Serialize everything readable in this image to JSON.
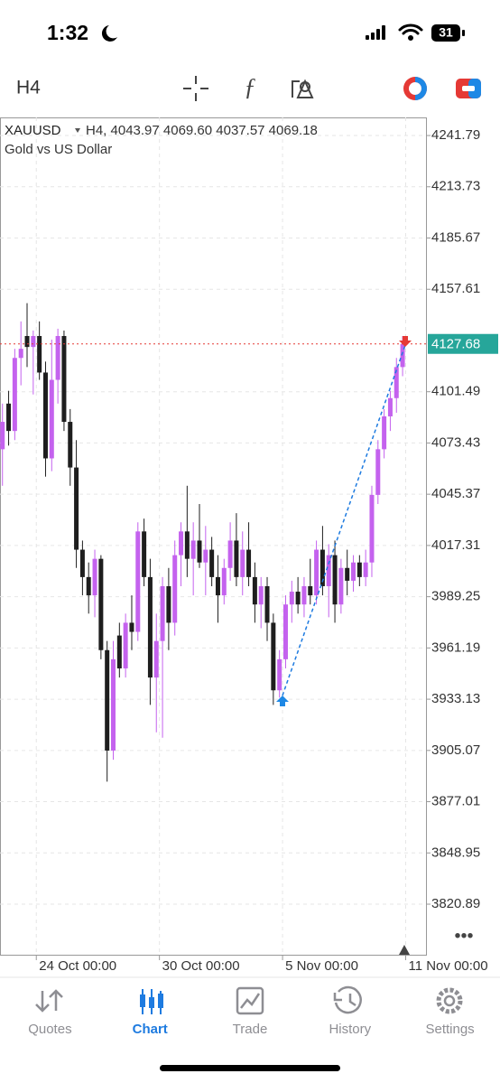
{
  "status_bar": {
    "time": "1:32",
    "battery": "31"
  },
  "toolbar": {
    "timeframe": "H4"
  },
  "chart_data": {
    "type": "candlestick",
    "symbol": "XAUUSD",
    "info": "H4, 4043.97 4069.60 4037.57 4069.18",
    "subtitle": "Gold vs US Dollar",
    "up_color": "#c462ee",
    "down_color": "#1e1e1e",
    "open": [
      4070,
      4095,
      4080,
      4120,
      4132,
      4126,
      4132,
      4112,
      4065,
      4108,
      4132,
      4085,
      4060,
      4015,
      4000,
      3990,
      4010,
      3960,
      3905,
      3968,
      3950,
      3975,
      3970,
      4025,
      4000,
      3945,
      3965,
      3995,
      3975,
      4012,
      4025,
      4010,
      4020,
      4008,
      4015,
      4000,
      3990,
      4005,
      4020,
      4000,
      4015,
      4000,
      3985,
      3995,
      3975,
      3938,
      3955,
      3985,
      3992,
      3985,
      3995,
      3990,
      4015,
      3995,
      4012,
      3985,
      4005,
      3998,
      4008,
      4000,
      4008,
      4045,
      4070,
      4088,
      4098,
      4115
    ],
    "high": [
      4095,
      4102,
      4125,
      4140,
      4150,
      4135,
      4140,
      4118,
      4130,
      4136,
      4135,
      4092,
      4075,
      4020,
      4008,
      4015,
      4012,
      3965,
      3965,
      3975,
      3980,
      3990,
      4030,
      4032,
      4010,
      3980,
      4000,
      4005,
      4020,
      4030,
      4050,
      4030,
      4040,
      4028,
      4022,
      4012,
      4010,
      4030,
      4035,
      4025,
      4030,
      4008,
      4000,
      4000,
      3980,
      3960,
      3990,
      3998,
      4000,
      4000,
      4010,
      4020,
      4028,
      4018,
      4020,
      4010,
      4015,
      4012,
      4012,
      4015,
      4050,
      4075,
      4092,
      4102,
      4120,
      4132
    ],
    "low": [
      4050,
      4072,
      4075,
      4105,
      4115,
      4100,
      4108,
      4055,
      4058,
      4095,
      4080,
      4050,
      4005,
      3990,
      3980,
      3978,
      3955,
      3888,
      3900,
      3945,
      3945,
      3960,
      3965,
      3995,
      3930,
      3915,
      3912,
      3960,
      3968,
      3995,
      4000,
      3990,
      4005,
      3990,
      3995,
      3975,
      3985,
      3998,
      3995,
      3990,
      3995,
      3975,
      3972,
      3965,
      3930,
      3934,
      3950,
      3975,
      3980,
      3978,
      3985,
      3985,
      3990,
      3978,
      3975,
      3980,
      3990,
      3992,
      3995,
      3995,
      4000,
      4040,
      4065,
      4080,
      4090,
      4110
    ],
    "close": [
      4085,
      4080,
      4120,
      4125,
      4126,
      4132,
      4112,
      4065,
      4108,
      4132,
      4085,
      4060,
      4015,
      4000,
      3990,
      4010,
      3960,
      3905,
      3955,
      3950,
      3975,
      3970,
      4025,
      4000,
      3945,
      3965,
      3995,
      3975,
      4012,
      4025,
      4010,
      4020,
      4008,
      4015,
      4000,
      3990,
      4005,
      4020,
      4000,
      4015,
      4000,
      3985,
      3995,
      3975,
      3938,
      3955,
      3985,
      3992,
      3985,
      3995,
      3990,
      4015,
      3995,
      4012,
      3985,
      4005,
      3998,
      4008,
      4000,
      4008,
      4045,
      4070,
      4088,
      4098,
      4115,
      4127.68
    ],
    "current_price": 4127.68,
    "ylim": [
      3793.2,
      4251.7
    ],
    "yticks": [
      4241.79,
      4213.73,
      4185.67,
      4157.61,
      4101.49,
      4073.43,
      4045.37,
      4017.31,
      3989.25,
      3961.19,
      3933.13,
      3905.07,
      3877.01,
      3848.95,
      3820.89
    ],
    "xlim": [
      -0.4,
      68.8
    ],
    "xticks": [
      {
        "value": 5.5,
        "label": "24 Oct 00:00"
      },
      {
        "value": 25.5,
        "label": "30 Oct 00:00"
      },
      {
        "value": 45.5,
        "label": "5 Nov 00:00"
      },
      {
        "value": 65.5,
        "label": "11 Nov 00:00"
      }
    ],
    "grid": true
  },
  "tabs": [
    "Quotes",
    "Chart",
    "Trade",
    "History",
    "Settings"
  ],
  "active_tab": 1
}
